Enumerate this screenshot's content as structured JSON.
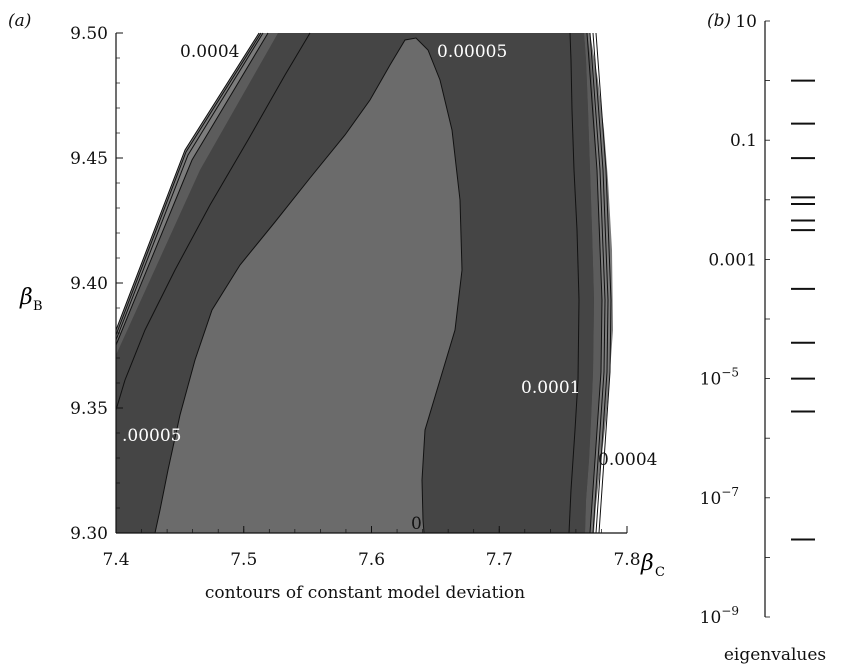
{
  "chart_data": [
    {
      "panel_label": "(a)",
      "type": "contour",
      "xlabel": "contours of constant model deviation",
      "x_axis_symbol": "β",
      "x_axis_sub": "C",
      "y_axis_symbol": "β",
      "y_axis_sub": "B",
      "xlim": [
        7.4,
        7.8
      ],
      "ylim": [
        9.3,
        9.5
      ],
      "x_ticks": [
        "7.4",
        "7.5",
        "7.6",
        "7.7",
        "7.8"
      ],
      "y_ticks": [
        "9.30",
        "9.35",
        "9.40",
        "9.45",
        "9.50"
      ],
      "region_colors": {
        "lowest": "#6b6b6b",
        "band_low": "#454545",
        "band_mid": "#5c5c5c",
        "band_high": "#7c7c7c",
        "outer": "#ffffff"
      },
      "contour_levels": [
        "0",
        "0.00005",
        "0.0001",
        "0.0004"
      ],
      "contour_labels": [
        {
          "text": "0.0004",
          "color": "#111111"
        },
        {
          "text": "0.00005",
          "color": "#ffffff"
        },
        {
          "text": "0.0001",
          "color": "#ffffff"
        },
        {
          "text": ".00005",
          "color": "#ffffff"
        },
        {
          "text": "0.0004",
          "color": "#111111"
        },
        {
          "text": "0",
          "color": "#111111"
        }
      ]
    },
    {
      "panel_label": "(b)",
      "type": "eigenvalue-ladder",
      "xlabel": "eigenvalues",
      "scale": "log",
      "ylim": [
        1e-09,
        10
      ],
      "y_ticks": [
        {
          "value": 10,
          "base": "10",
          "exp": ""
        },
        {
          "value": 0.1,
          "base": "0.1",
          "exp": ""
        },
        {
          "value": 0.001,
          "base": "0.001",
          "exp": ""
        },
        {
          "value": 1e-05,
          "base": "10",
          "exp": "−5"
        },
        {
          "value": 1e-07,
          "base": "10",
          "exp": "−7"
        },
        {
          "value": 1e-09,
          "base": "10",
          "exp": "−9"
        }
      ],
      "values": [
        1,
        0.19,
        0.05,
        0.011,
        0.0085,
        0.0045,
        0.0031,
        0.00032,
        4e-05,
        1e-05,
        2.8e-06,
        2e-08
      ]
    }
  ]
}
